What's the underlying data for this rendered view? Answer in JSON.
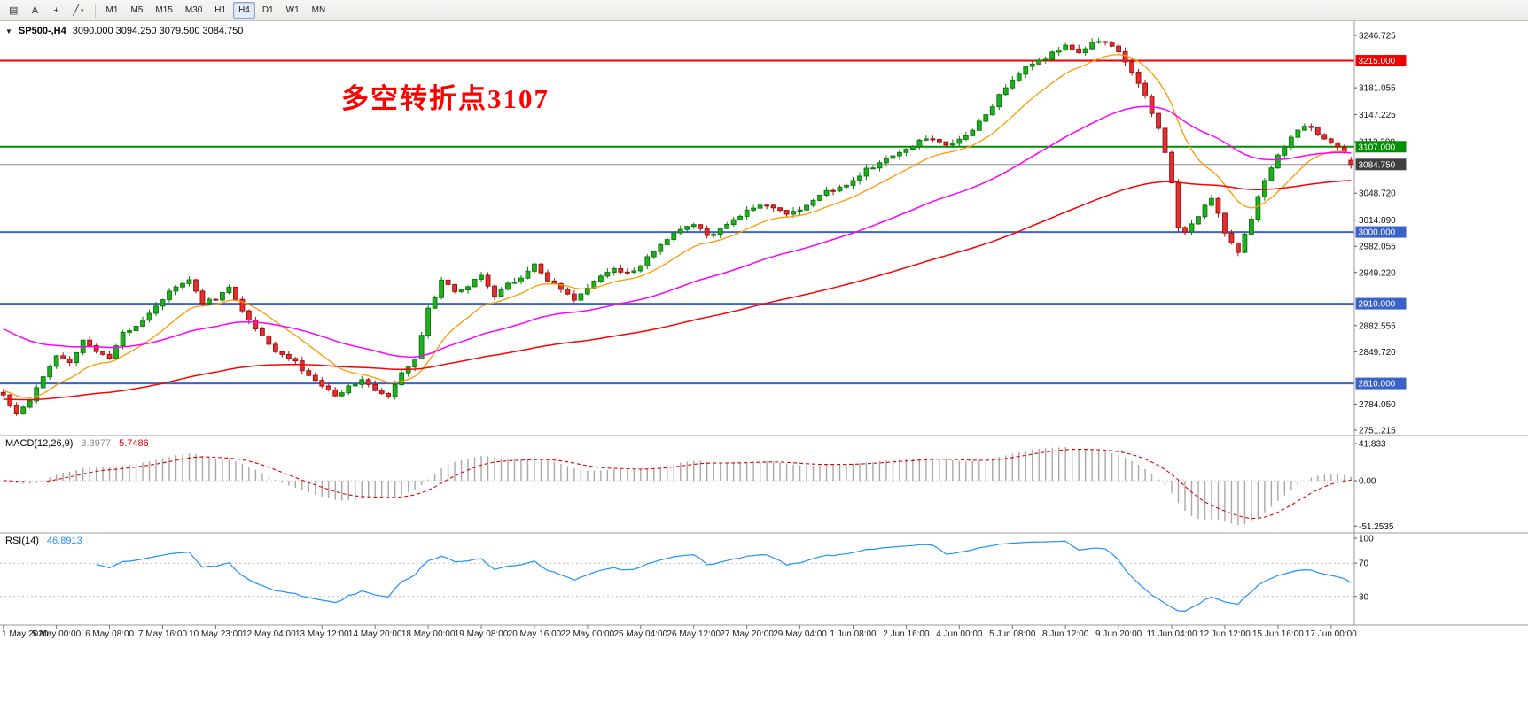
{
  "toolbar": {
    "icons": [
      {
        "name": "charts-icon",
        "glyph": "▤"
      },
      {
        "name": "cursor-icon",
        "glyph": "A"
      },
      {
        "name": "crosshair-icon",
        "glyph": "+"
      },
      {
        "name": "trendlines-icon",
        "glyph": "╱",
        "caret": "▾"
      }
    ],
    "timeframes": [
      "M1",
      "M5",
      "M15",
      "M30",
      "H1",
      "H4",
      "D1",
      "W1",
      "MN"
    ],
    "active_timeframe": "H4"
  },
  "chart_header": {
    "collapse_glyph": "▼",
    "symbol_period": "SP500-,H4",
    "ohlc_text": "3090.000 3094.250 3079.500 3084.750"
  },
  "annotation": {
    "text": "多空转折点3107",
    "color": "#FF0000"
  },
  "price_axis": {
    "labels": [
      3246.725,
      3181.055,
      3147.225,
      3113.39,
      3048.72,
      3014.89,
      2982.055,
      2949.22,
      2882.555,
      2849.72,
      2784.05,
      2751.215
    ],
    "badges": [
      {
        "price": 3215.0,
        "text": "3215.000",
        "color": "#EE0000"
      },
      {
        "price": 3107.0,
        "text": "3107.000",
        "color": "#008F00"
      },
      {
        "price": 3084.75,
        "text": "3084.750",
        "color": "#3F3F3F"
      },
      {
        "price": 3000.0,
        "text": "3000.000",
        "color": "#3A62C8"
      },
      {
        "price": 2910.0,
        "text": "2910.000",
        "color": "#3A62C8"
      },
      {
        "price": 2810.0,
        "text": "2810.000",
        "color": "#3A62C8"
      }
    ]
  },
  "time_axis": [
    {
      "label": "1 May 2020",
      "bar": 0
    },
    {
      "label": "5 May 00:00",
      "bar": 8
    },
    {
      "label": "6 May 08:00",
      "bar": 16
    },
    {
      "label": "7 May 16:00",
      "bar": 24
    },
    {
      "label": "10 May 23:00",
      "bar": 32
    },
    {
      "label": "12 May 04:00",
      "bar": 40
    },
    {
      "label": "13 May 12:00",
      "bar": 48
    },
    {
      "label": "14 May 20:00",
      "bar": 56
    },
    {
      "label": "18 May 00:00",
      "bar": 64
    },
    {
      "label": "19 May 08:00",
      "bar": 72
    },
    {
      "label": "20 May 16:00",
      "bar": 80
    },
    {
      "label": "22 May 00:00",
      "bar": 88
    },
    {
      "label": "25 May 04:00",
      "bar": 96
    },
    {
      "label": "26 May 12:00",
      "bar": 104
    },
    {
      "label": "27 May 20:00",
      "bar": 112
    },
    {
      "label": "29 May 04:00",
      "bar": 120
    },
    {
      "label": "1 Jun 08:00",
      "bar": 128
    },
    {
      "label": "2 Jun 16:00",
      "bar": 136
    },
    {
      "label": "4 Jun 00:00",
      "bar": 144
    },
    {
      "label": "5 Jun 08:00",
      "bar": 152
    },
    {
      "label": "8 Jun 12:00",
      "bar": 160
    },
    {
      "label": "9 Jun 20:00",
      "bar": 168
    },
    {
      "label": "11 Jun 04:00",
      "bar": 176
    },
    {
      "label": "12 Jun 12:00",
      "bar": 184
    },
    {
      "label": "15 Jun 16:00",
      "bar": 192
    },
    {
      "label": "17 Jun 00:00",
      "bar": 200
    }
  ],
  "macd_panel": {
    "label": "MACD(12,26,9)",
    "main_value": "3.3977",
    "signal_value": "5.7486",
    "axis": [
      {
        "value": 41.833,
        "text": "41.833"
      },
      {
        "value": 0,
        "text": "0.00"
      },
      {
        "value": -51.2535,
        "text": "-51.2535"
      }
    ],
    "histogram_color": "#A8A8A8",
    "signal_color": "#E00000"
  },
  "rsi_panel": {
    "label": "RSI(14)",
    "value": "46.8913",
    "axis": [
      {
        "value": 100,
        "text": "100"
      },
      {
        "value": 70,
        "text": "70"
      },
      {
        "value": 30,
        "text": "30"
      }
    ],
    "levels": [
      70,
      30
    ],
    "line_color": "#1E90FF"
  },
  "chart_data": {
    "type": "candlestick",
    "symbol": "SP500-",
    "timeframe": "H4",
    "bar_count": 204,
    "price_range": [
      2751.215,
      3246.725
    ],
    "ohlc_current": {
      "open": 3090.0,
      "high": 3094.25,
      "low": 3079.5,
      "close": 3084.75
    },
    "levels": [
      {
        "price": 3215.0,
        "color": "#EE0000",
        "width": 2,
        "name": "resistance-3215"
      },
      {
        "price": 3107.0,
        "color": "#008F00",
        "width": 2,
        "name": "pivot-3107"
      },
      {
        "price": 3084.75,
        "color": "#8A8A8A",
        "width": 1,
        "name": "current-price-line"
      },
      {
        "price": 3000.0,
        "color": "#3A62C8",
        "width": 2,
        "name": "support-3000"
      },
      {
        "price": 2910.0,
        "color": "#3A62C8",
        "width": 2,
        "name": "support-2910"
      },
      {
        "price": 2810.0,
        "color": "#3A62C8",
        "width": 2,
        "name": "support-2810"
      }
    ],
    "moving_averages": [
      {
        "name": "ma-fast",
        "period": 13,
        "color": "#FF9900",
        "seed": 2802,
        "width": 1.3
      },
      {
        "name": "ma-medium",
        "period": 48,
        "color": "#FF00FF",
        "seed": 2882,
        "width": 1.5
      },
      {
        "name": "ma-slow",
        "period": 120,
        "color": "#FF0000",
        "seed": 2790,
        "width": 1.5
      }
    ],
    "indicators": [
      {
        "type": "MACD",
        "params": [
          12,
          26,
          9
        ],
        "current": [
          3.3977,
          5.7486
        ],
        "range": [
          -55,
          45
        ]
      },
      {
        "type": "RSI",
        "params": [
          14
        ],
        "current": 46.8913,
        "range": [
          0,
          100
        ]
      }
    ],
    "candle_colors": {
      "up_fill": "#1FAF1F",
      "up_stroke": "#0E7A0E",
      "down_fill": "#E33030",
      "down_stroke": "#A01010"
    },
    "close_path": [
      [
        0,
        2795
      ],
      [
        2,
        2772
      ],
      [
        4,
        2790
      ],
      [
        6,
        2820
      ],
      [
        8,
        2846
      ],
      [
        10,
        2836
      ],
      [
        12,
        2862
      ],
      [
        14,
        2852
      ],
      [
        16,
        2842
      ],
      [
        18,
        2872
      ],
      [
        20,
        2882
      ],
      [
        22,
        2900
      ],
      [
        24,
        2916
      ],
      [
        26,
        2932
      ],
      [
        28,
        2938
      ],
      [
        30,
        2912
      ],
      [
        32,
        2916
      ],
      [
        34,
        2930
      ],
      [
        36,
        2902
      ],
      [
        38,
        2878
      ],
      [
        40,
        2858
      ],
      [
        42,
        2846
      ],
      [
        44,
        2836
      ],
      [
        46,
        2818
      ],
      [
        48,
        2808
      ],
      [
        50,
        2794
      ],
      [
        52,
        2806
      ],
      [
        54,
        2816
      ],
      [
        56,
        2800
      ],
      [
        58,
        2792
      ],
      [
        60,
        2822
      ],
      [
        62,
        2842
      ],
      [
        64,
        2902
      ],
      [
        66,
        2938
      ],
      [
        68,
        2926
      ],
      [
        70,
        2932
      ],
      [
        72,
        2948
      ],
      [
        74,
        2920
      ],
      [
        76,
        2934
      ],
      [
        78,
        2944
      ],
      [
        80,
        2958
      ],
      [
        82,
        2938
      ],
      [
        84,
        2928
      ],
      [
        86,
        2916
      ],
      [
        88,
        2928
      ],
      [
        90,
        2946
      ],
      [
        92,
        2952
      ],
      [
        94,
        2948
      ],
      [
        96,
        2958
      ],
      [
        98,
        2976
      ],
      [
        100,
        2992
      ],
      [
        102,
        3002
      ],
      [
        104,
        3010
      ],
      [
        106,
        2996
      ],
      [
        108,
        3002
      ],
      [
        110,
        3016
      ],
      [
        112,
        3026
      ],
      [
        114,
        3034
      ],
      [
        116,
        3030
      ],
      [
        118,
        3022
      ],
      [
        120,
        3028
      ],
      [
        122,
        3040
      ],
      [
        124,
        3050
      ],
      [
        126,
        3056
      ],
      [
        128,
        3064
      ],
      [
        130,
        3078
      ],
      [
        132,
        3086
      ],
      [
        134,
        3096
      ],
      [
        136,
        3104
      ],
      [
        138,
        3114
      ],
      [
        140,
        3118
      ],
      [
        142,
        3108
      ],
      [
        144,
        3116
      ],
      [
        146,
        3130
      ],
      [
        148,
        3146
      ],
      [
        150,
        3172
      ],
      [
        152,
        3192
      ],
      [
        154,
        3206
      ],
      [
        156,
        3214
      ],
      [
        158,
        3224
      ],
      [
        160,
        3232
      ],
      [
        162,
        3226
      ],
      [
        164,
        3236
      ],
      [
        166,
        3240
      ],
      [
        168,
        3224
      ],
      [
        170,
        3202
      ],
      [
        172,
        3170
      ],
      [
        174,
        3130
      ],
      [
        175,
        3100
      ],
      [
        176,
        3062
      ],
      [
        177,
        3008
      ],
      [
        178,
        2998
      ],
      [
        180,
        3020
      ],
      [
        182,
        3044
      ],
      [
        184,
        3000
      ],
      [
        186,
        2972
      ],
      [
        188,
        3018
      ],
      [
        190,
        3066
      ],
      [
        192,
        3096
      ],
      [
        194,
        3118
      ],
      [
        196,
        3134
      ],
      [
        198,
        3124
      ],
      [
        200,
        3114
      ],
      [
        202,
        3098
      ],
      [
        203,
        3084.75
      ]
    ]
  }
}
